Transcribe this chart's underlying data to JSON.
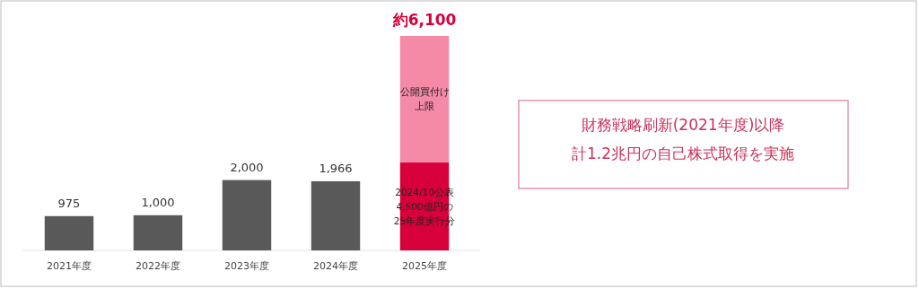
{
  "chart_data": {
    "type": "bar",
    "stacked": true,
    "categories": [
      "2021年度",
      "2022年度",
      "2023年度",
      "2024年度",
      "2025年度"
    ],
    "series": [
      {
        "colors": [
          "#595959",
          "#595959",
          "#595959",
          "#595959",
          "#d7003a"
        ],
        "values": [
          975,
          1000,
          2000,
          1966,
          2500
        ],
        "value_labels": [
          "975",
          "1,000",
          "2,000",
          "1,966",
          null
        ]
      },
      {
        "color": "#f48aa6",
        "values": [
          null,
          null,
          null,
          null,
          3600
        ]
      }
    ],
    "totals": [
      null,
      null,
      null,
      null,
      "約6,100"
    ],
    "annotations": [
      "公開買付け",
      "上限",
      "2024/10公表",
      "4,500億円の",
      "25年度実行分",
      "財務戦略刷新(2021年度)以降",
      "計1.2兆円の自己株式取得を実施"
    ]
  }
}
